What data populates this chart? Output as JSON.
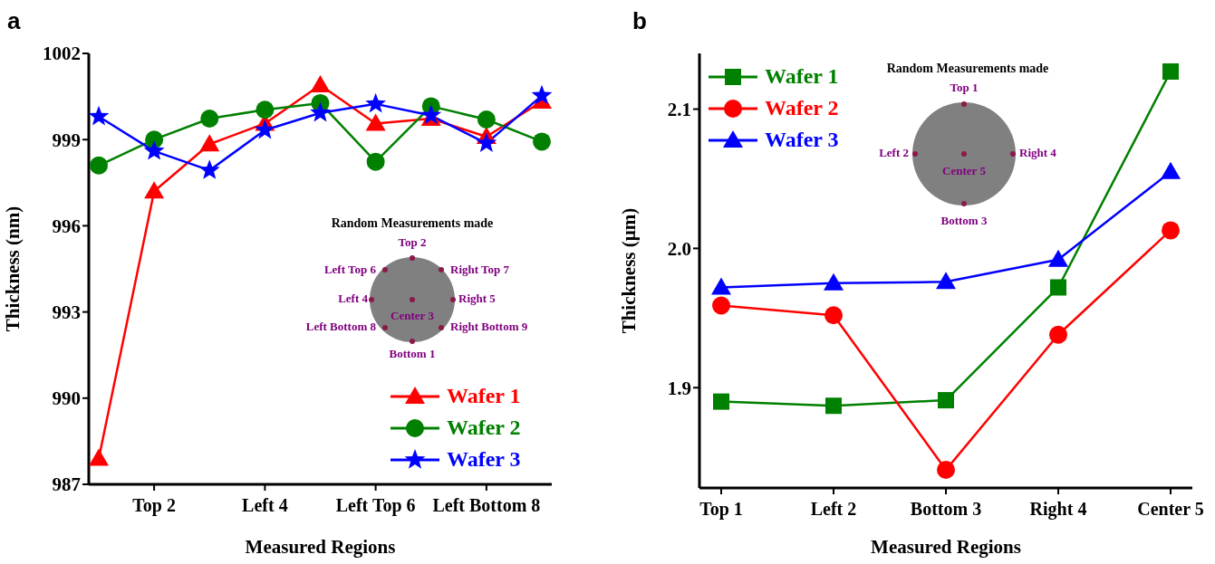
{
  "chart_data": [
    {
      "type": "line",
      "title": "a",
      "xlabel": "Measured Regions",
      "ylabel": "Thickness (nm)",
      "categories": [
        null,
        "Top 2",
        null,
        "Left 4",
        null,
        "Left Top 6",
        null,
        "Left Bottom 8",
        null
      ],
      "ylim": [
        987,
        1002
      ],
      "yticks": [
        987,
        990,
        993,
        996,
        999,
        1002
      ],
      "legend": "bottom right",
      "series": [
        {
          "name": "Wafer 1",
          "color": "#ff0000",
          "marker": "triangle",
          "values": [
            987.9,
            997.2,
            998.84,
            999.56,
            1000.9,
            999.56,
            999.73,
            999.1,
            1000.33
          ]
        },
        {
          "name": "Wafer 2",
          "color": "#008000",
          "marker": "circle",
          "values": [
            998.1,
            999.0,
            999.73,
            1000.04,
            1000.27,
            998.23,
            1000.16,
            999.7,
            998.93
          ]
        },
        {
          "name": "Wafer 3",
          "color": "#0000ff",
          "marker": "star",
          "values": [
            999.8,
            998.6,
            997.93,
            999.33,
            999.93,
            1000.24,
            999.84,
            998.87,
            1000.53
          ]
        }
      ],
      "annotations": [
        "Random Measurements made",
        "Top 2",
        "Left Top 6",
        "Right Top 7",
        "Left 4",
        "Right 5",
        "Center 3",
        "Left Bottom 8",
        "Right Bottom 9",
        "Bottom 1"
      ]
    },
    {
      "type": "line",
      "title": "b",
      "xlabel": "Measured Regions",
      "ylabel": "Thickness (µm)",
      "categories": [
        "Top 1",
        "Left 2",
        "Bottom 3",
        "Right 4",
        "Center 5"
      ],
      "ylim": [
        1.828,
        2.14
      ],
      "yticks": [
        {
          "value": 1.9,
          "label": "1.9"
        },
        {
          "value": 2.0,
          "label": "2.0"
        },
        {
          "value": 2.1,
          "label": "2.1"
        }
      ],
      "legend": "top left",
      "series": [
        {
          "name": "Wafer 1",
          "color": "#008000",
          "marker": "square",
          "values": [
            1.89,
            1.887,
            1.891,
            1.972,
            2.127
          ]
        },
        {
          "name": "Wafer 2",
          "color": "#ff0000",
          "marker": "circle",
          "values": [
            1.959,
            1.952,
            1.841,
            1.938,
            2.013
          ]
        },
        {
          "name": "Wafer 3",
          "color": "#0000ff",
          "marker": "triangle",
          "values": [
            1.972,
            1.975,
            1.976,
            1.992,
            2.055
          ]
        }
      ],
      "annotations": [
        "Random Measurements made",
        "Top 1",
        "Left 2",
        "Right 4",
        "Center 5",
        "Bottom 3"
      ]
    }
  ]
}
